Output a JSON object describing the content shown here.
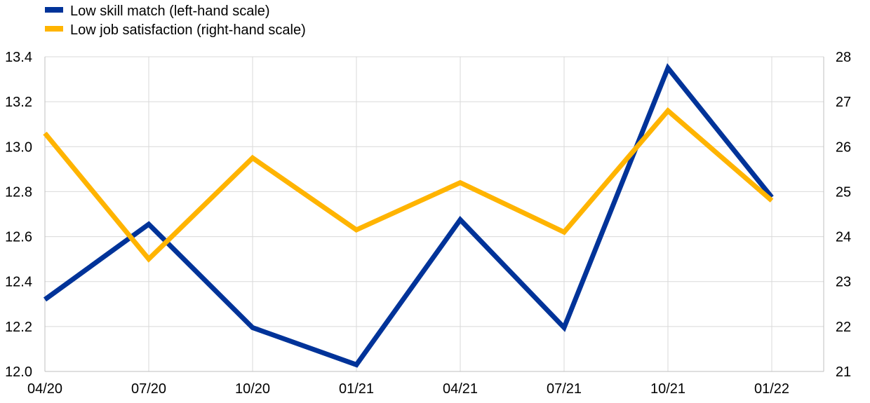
{
  "chart_data": {
    "type": "line",
    "categories": [
      "04/20",
      "07/20",
      "10/20",
      "01/21",
      "04/21",
      "07/21",
      "10/21",
      "01/22"
    ],
    "series": [
      {
        "name": "Low skill match (left-hand scale)",
        "axis": "left",
        "color": "#003399",
        "values": [
          12.32,
          12.655,
          12.195,
          12.03,
          12.675,
          12.195,
          13.35,
          12.775
        ]
      },
      {
        "name": "Low job satisfaction (right-hand scale)",
        "axis": "right",
        "color": "#FFB400",
        "values": [
          26.3,
          23.5,
          25.75,
          24.15,
          25.2,
          24.1,
          26.8,
          24.8
        ]
      }
    ],
    "y_left": {
      "min": 12.0,
      "max": 13.4,
      "ticks": [
        "12.0",
        "12.2",
        "12.4",
        "12.6",
        "12.8",
        "13.0",
        "13.2",
        "13.4"
      ]
    },
    "y_right": {
      "min": 21,
      "max": 28,
      "ticks": [
        "21",
        "22",
        "23",
        "24",
        "25",
        "26",
        "27",
        "28"
      ]
    },
    "grid": true,
    "legend_position": "top-left"
  }
}
